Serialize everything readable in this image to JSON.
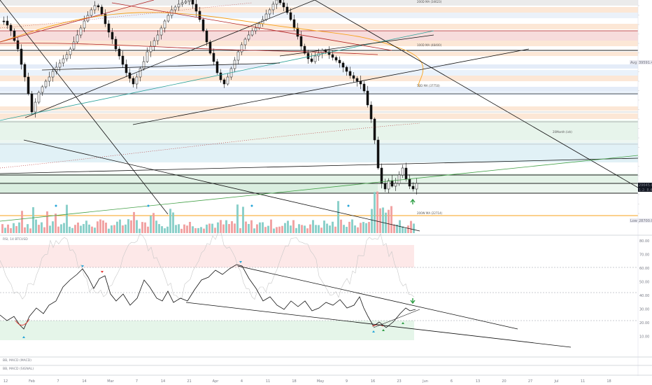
{
  "chart_data": {
    "type": "candlestick",
    "price_axis": {
      "ticks": [],
      "last_price": "29645.06",
      "countdown": "1:2: 8.46"
    },
    "price_labels": {
      "avg": "Avg",
      "avg_value": "39591.43",
      "low": "Low",
      "low_value": "28700.00"
    },
    "annotations": [
      {
        "text": "200D MA (34623)",
        "color": "#5b9bd5"
      },
      {
        "text": "100D MA (48400)",
        "color": "#2962ff"
      },
      {
        "text": "50D MA (37750)",
        "color": "#f7a21b"
      },
      {
        "text": "200W MA (22714)",
        "color": "#2962ff"
      },
      {
        "text": "20Month (ish)",
        "color": "#555"
      }
    ],
    "time_axis": [
      "12",
      "Feb",
      "7",
      "14",
      "Mar",
      "7",
      "14",
      "21",
      "Apr",
      "4",
      "11",
      "18",
      "May",
      "9",
      "16",
      "23",
      "Jun",
      "6",
      "13",
      "20",
      "27",
      "Jul",
      "11",
      "18"
    ],
    "rsi": {
      "title": "RSI, 14 BTCUSD",
      "ticks": [
        "80.00",
        "70.00",
        "60.00",
        "50.00",
        "40.00",
        "30.00",
        "20.00",
        "10.00"
      ],
      "upper": 70,
      "lower": 30
    },
    "lower_panes": [
      "BB, MACD (MACD)",
      "BB, MACD (SIGNAL)"
    ]
  }
}
